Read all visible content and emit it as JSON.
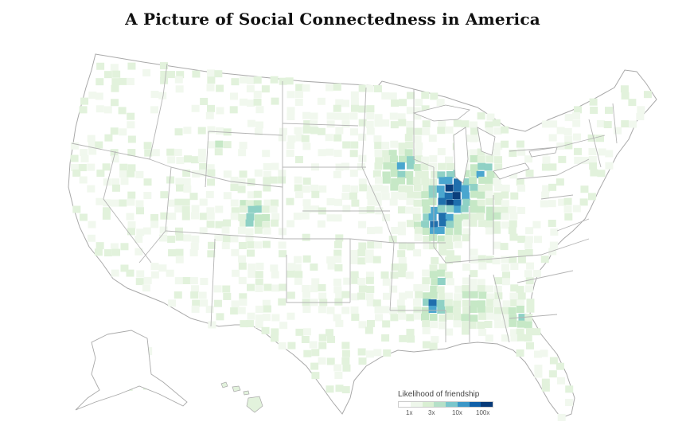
{
  "title": "A Picture of Social Connectedness in America",
  "map": {
    "kind": "choropleth",
    "region": "United States counties",
    "colors": {
      "land": "#ffffff",
      "state_border": "#a9a9a9",
      "county_border": "#ececec",
      "level_1": "#f1f8ee",
      "level_2": "#e2f2dc",
      "level_3": "#c6e8c6",
      "level_4": "#8fd1c5",
      "level_5": "#4aa6cf",
      "level_6": "#1f6fad",
      "level_7": "#0b3f7c"
    }
  },
  "legend": {
    "title": "Likelihood of friendship",
    "swatches": [
      "#ffffff",
      "#eef7eb",
      "#d9efd3",
      "#b5e0c8",
      "#7ac6cc",
      "#3c97c7",
      "#1060a8",
      "#083a78"
    ],
    "ticks": [
      "1x",
      "3x",
      "10x",
      "100x"
    ]
  }
}
